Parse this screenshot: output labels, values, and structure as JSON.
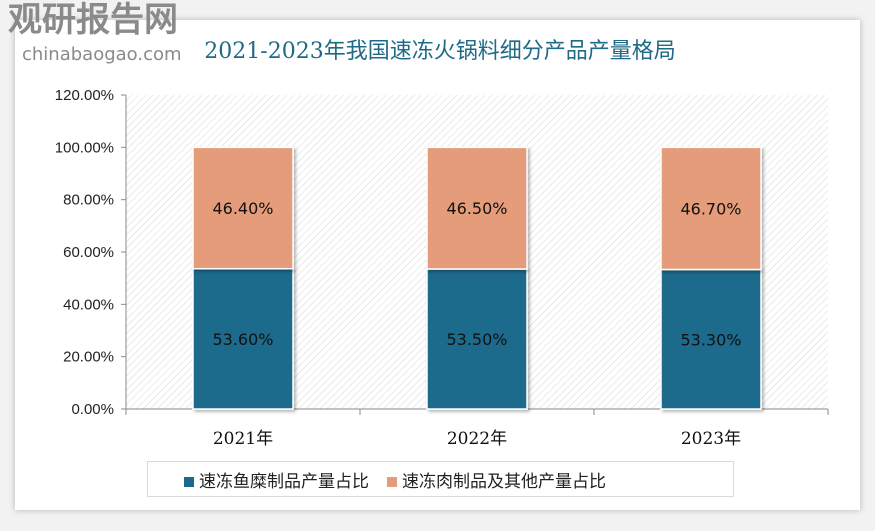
{
  "chart_data": {
    "type": "bar",
    "stacked": true,
    "title": "2021-2023年我国速冻火锅料细分产品产量格局",
    "categories": [
      "2021年",
      "2022年",
      "2023年"
    ],
    "series": [
      {
        "name": "速冻鱼糜制品产量占比",
        "values": [
          53.6,
          53.5,
          53.3
        ],
        "labels": [
          "53.60%",
          "53.50%",
          "53.30%"
        ],
        "color": "#1b6a8c"
      },
      {
        "name": "速冻肉制品及其他产量占比",
        "values": [
          46.4,
          46.5,
          46.7
        ],
        "labels": [
          "46.40%",
          "46.50%",
          "46.70%"
        ],
        "color": "#e49c7a"
      }
    ],
    "ylim": [
      0,
      120
    ],
    "yticks": [
      "0.00%",
      "20.00%",
      "40.00%",
      "60.00%",
      "80.00%",
      "100.00%",
      "120.00%"
    ],
    "grid": false,
    "plot_background": "diagonal-hatch",
    "legend_position": "bottom"
  },
  "watermark": {
    "logo_text": "观研报告网",
    "url_text": "chinabaogao.com"
  }
}
